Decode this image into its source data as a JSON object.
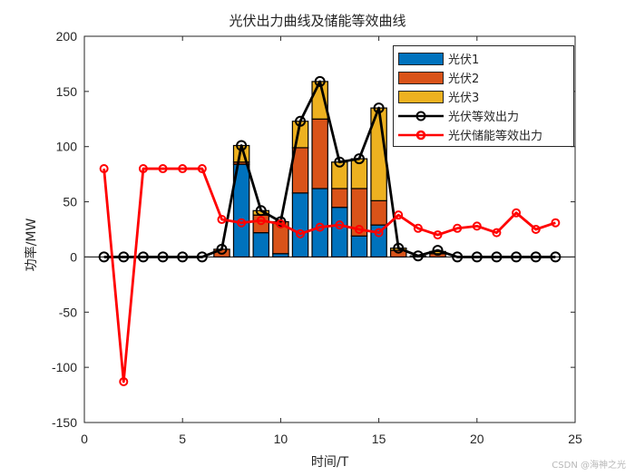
{
  "title": "光伏出力曲线及储能等效曲线",
  "xlabel": "时间/T",
  "ylabel": "功率/MW",
  "watermark": "CSDN @海神之光",
  "legend": [
    {
      "label": "光伏1",
      "kind": "bar",
      "color": "#0072BD"
    },
    {
      "label": "光伏2",
      "kind": "bar",
      "color": "#D95319"
    },
    {
      "label": "光伏3",
      "kind": "bar",
      "color": "#EDB120"
    },
    {
      "label": "光伏等效出力",
      "kind": "line",
      "color": "#000000"
    },
    {
      "label": "光伏储能等效出力",
      "kind": "line",
      "color": "#FF0000"
    }
  ],
  "chart_data": {
    "type": "bar",
    "title": "光伏出力曲线及储能等效曲线",
    "xlabel": "时间/T",
    "ylabel": "功率/MW",
    "xlim": [
      0,
      25
    ],
    "ylim": [
      -150,
      200
    ],
    "xticks": [
      0,
      5,
      10,
      15,
      20,
      25
    ],
    "yticks": [
      -150,
      -100,
      -50,
      0,
      50,
      100,
      150,
      200
    ],
    "grid": false,
    "legend_position": "upper right",
    "x": [
      1,
      2,
      3,
      4,
      5,
      6,
      7,
      8,
      9,
      10,
      11,
      12,
      13,
      14,
      15,
      16,
      17,
      18,
      19,
      20,
      21,
      22,
      23,
      24
    ],
    "stacked_bars": [
      {
        "name": "光伏1",
        "color": "#0072BD",
        "values": [
          0,
          0,
          0,
          0,
          0,
          0,
          0,
          84,
          22,
          3,
          58,
          62,
          45,
          19,
          29,
          0,
          0,
          0,
          0,
          0,
          0,
          0,
          0,
          0
        ]
      },
      {
        "name": "光伏2",
        "color": "#D95319",
        "values": [
          0,
          0,
          0,
          0,
          0,
          0,
          7,
          2,
          16,
          29,
          41,
          63,
          17,
          43,
          22,
          6,
          1,
          3,
          0,
          0,
          0,
          0,
          0,
          0
        ]
      },
      {
        "name": "光伏3",
        "color": "#EDB120",
        "values": [
          0,
          0,
          0,
          0,
          0,
          0,
          0,
          15,
          4,
          0,
          24,
          34,
          24,
          27,
          84,
          2,
          0,
          2,
          0,
          0,
          0,
          0,
          0,
          0
        ]
      }
    ],
    "series": [
      {
        "name": "光伏等效出力",
        "type": "line",
        "color": "#000000",
        "marker": "o",
        "values": [
          0,
          0,
          0,
          0,
          0,
          0,
          7,
          101,
          42,
          32,
          123,
          159,
          86,
          89,
          135,
          8,
          1,
          6,
          0,
          0,
          0,
          0,
          0,
          0
        ]
      },
      {
        "name": "光伏储能等效出力",
        "type": "line",
        "color": "#FF0000",
        "marker": "o",
        "values": [
          80,
          -113,
          80,
          80,
          80,
          80,
          34,
          31,
          33,
          30,
          21,
          27,
          29,
          25,
          22,
          38,
          26,
          20,
          26,
          28,
          22,
          40,
          25,
          31
        ]
      }
    ]
  }
}
